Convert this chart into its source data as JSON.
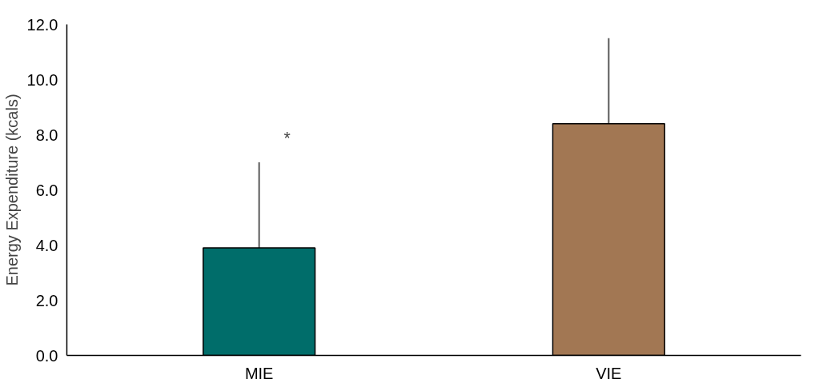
{
  "chart_data": {
    "type": "bar",
    "ylabel": "Energy Expenditure (kcals)",
    "categories": [
      "MIE",
      "VIE"
    ],
    "values": [
      3.9,
      8.4
    ],
    "colors": [
      "#006d6a",
      "#a27753"
    ],
    "errors": [
      [
        3.9,
        7.0
      ],
      [
        8.4,
        11.5
      ]
    ],
    "ylim": [
      0,
      12
    ],
    "yticks": [
      {
        "value": 0,
        "label": "0.0"
      },
      {
        "value": 2,
        "label": "2.0"
      },
      {
        "value": 4,
        "label": "4.0"
      },
      {
        "value": 6,
        "label": "6.0"
      },
      {
        "value": 8,
        "label": "8.0"
      },
      {
        "value": 10,
        "label": "10.0"
      },
      {
        "value": 12,
        "label": "12.0"
      }
    ],
    "annotations": [
      "*"
    ],
    "grid": false
  }
}
